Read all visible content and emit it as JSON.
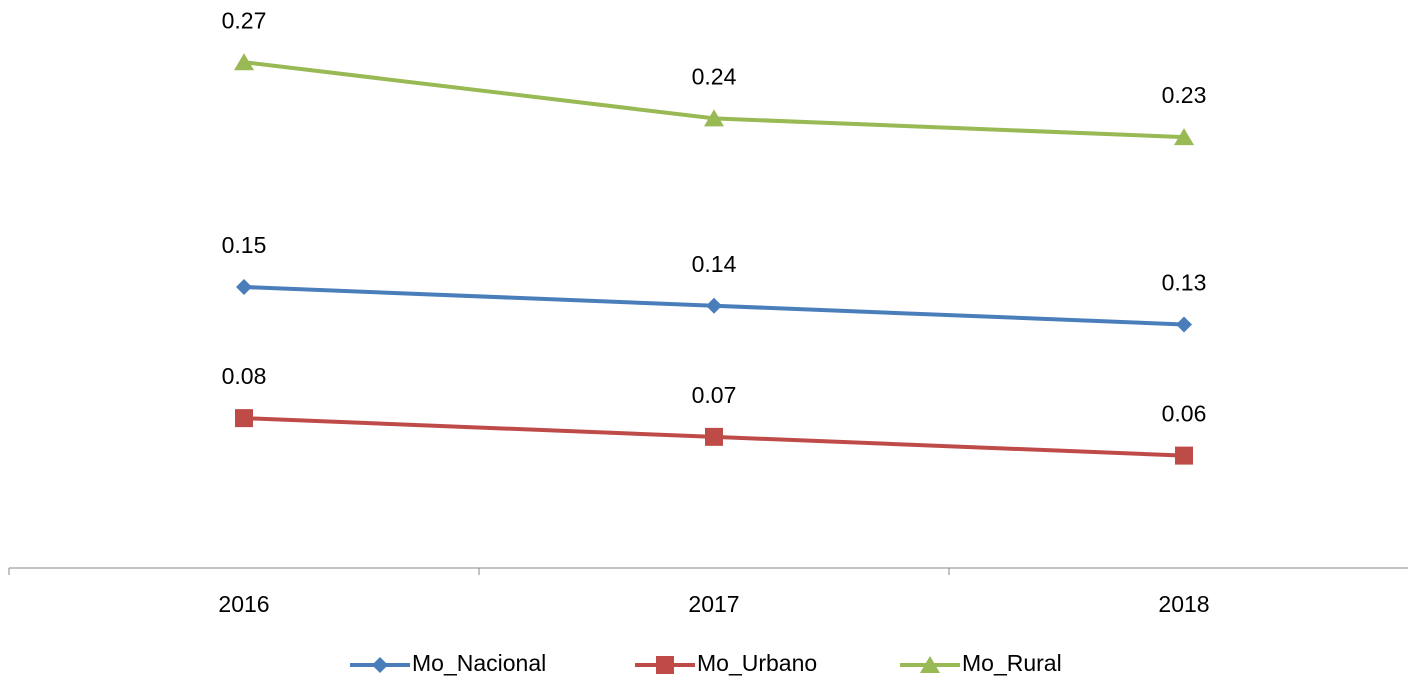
{
  "chart_data": {
    "type": "line",
    "categories": [
      "2016",
      "2017",
      "2018"
    ],
    "series": [
      {
        "name": "Mo_Nacional",
        "color": "#4a7ebb",
        "marker": "diamond",
        "values": [
          0.15,
          0.14,
          0.13
        ]
      },
      {
        "name": "Mo_Urbano",
        "color": "#be4b48",
        "marker": "square",
        "values": [
          0.08,
          0.07,
          0.06
        ]
      },
      {
        "name": "Mo_Rural",
        "color": "#98b954",
        "marker": "triangle",
        "values": [
          0.27,
          0.24,
          0.23
        ]
      }
    ],
    "ylim": [
      0,
      0.3
    ],
    "legend": "bottom"
  }
}
